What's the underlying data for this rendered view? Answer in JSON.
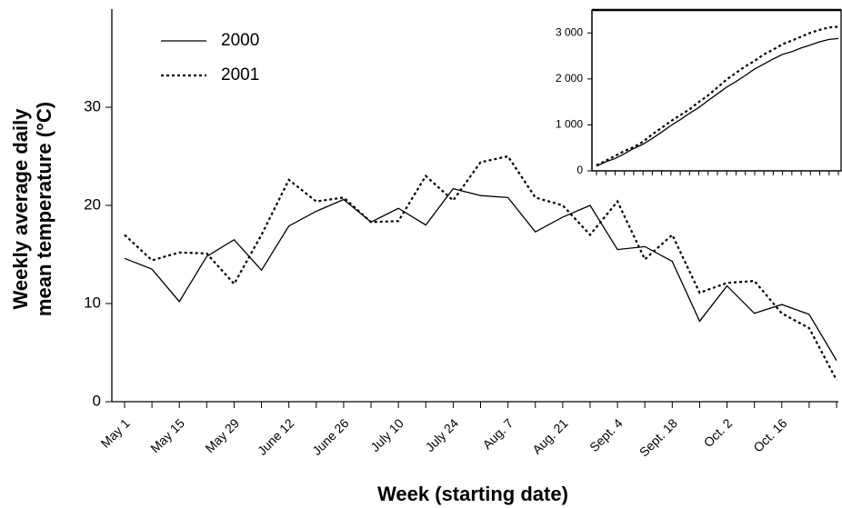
{
  "chart_data": [
    {
      "type": "line",
      "xlabel": "Week (starting date)",
      "ylabel": [
        "Weekly average daily",
        "mean temperature (°C)"
      ],
      "categories": [
        "May 1",
        null,
        "May 15",
        null,
        "May 29",
        null,
        "June 12",
        null,
        "June 26",
        null,
        "July 10",
        null,
        "July 24",
        null,
        "Aug. 7",
        null,
        "Aug. 21",
        null,
        "Sept. 4",
        null,
        "Sept. 18",
        null,
        "Oct. 2",
        null,
        "Oct. 16",
        null,
        null
      ],
      "series": [
        {
          "name": "2000",
          "color": "#000000",
          "style": "solid",
          "values": [
            14.6,
            13.5,
            10.2,
            14.8,
            16.5,
            13.4,
            17.9,
            19.4,
            20.6,
            18.3,
            19.7,
            18.0,
            21.7,
            21.0,
            20.8,
            17.3,
            18.8,
            20.0,
            15.5,
            15.8,
            14.3,
            8.2,
            11.8,
            9.0,
            9.9,
            8.9,
            4.2
          ]
        },
        {
          "name": "2001",
          "color": "#000000",
          "style": "dotted",
          "values": [
            17.0,
            14.4,
            15.2,
            15.1,
            12.0,
            17.0,
            22.6,
            20.4,
            20.8,
            18.3,
            18.4,
            23.0,
            20.5,
            24.4,
            25.0,
            20.8,
            20.0,
            17.0,
            20.4,
            14.5,
            17.0,
            11.1,
            12.1,
            12.3,
            9.0,
            7.5,
            2.2
          ]
        }
      ],
      "ylim": [
        0,
        40
      ],
      "yticks": [
        0,
        10,
        20,
        30
      ],
      "legend": "top-left"
    },
    {
      "type": "line",
      "series": [
        {
          "color": "#000000",
          "style": "solid",
          "values": [
            102,
            197,
            268,
            372,
            487,
            581,
            706,
            842,
            986,
            1114,
            1252,
            1378,
            1530,
            1677,
            1823,
            1944,
            2076,
            2216,
            2324,
            2435,
            2535,
            2592,
            2675,
            2738,
            2807,
            2860,
            2880
          ]
        },
        {
          "color": "#000000",
          "style": "dotted",
          "values": [
            119,
            220,
            326,
            432,
            516,
            635,
            793,
            936,
            1082,
            1210,
            1338,
            1499,
            1643,
            1814,
            1989,
            2134,
            2274,
            2393,
            2536,
            2638,
            2757,
            2834,
            2919,
            3005,
            3068,
            3121,
            3136
          ]
        }
      ],
      "ylim": [
        0,
        3500
      ],
      "yticks": [
        0,
        {
          "value": 1000,
          "label": "1 000"
        },
        {
          "value": 2000,
          "label": "2 000"
        },
        {
          "value": 3000,
          "label": "3 000"
        }
      ]
    }
  ]
}
